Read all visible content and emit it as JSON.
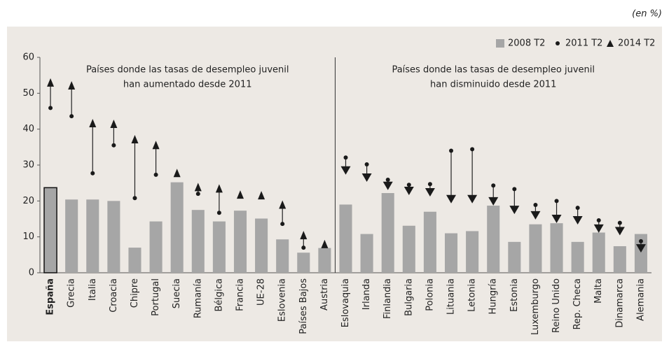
{
  "chart_data": {
    "type": "bar_dot_triangle",
    "unit_note": "(en %)",
    "annotations": [
      [
        "Países donde las tasas de desempleo juvenil",
        "han aumentado desde 2011"
      ],
      [
        "Países donde las tasas de desempleo juvenil",
        "han disminuido desde 2011"
      ]
    ],
    "divider_index": 15,
    "highlight_index": 0,
    "categories": [
      "España",
      "Grecia",
      "Italia",
      "Croacia",
      "Chipre",
      "Portugal",
      "Suecia",
      "Rumanía",
      "Bélgica",
      "Francia",
      "UE-28",
      "Eslovenia",
      "Países Bajos",
      "Austria",
      "Eslovaquia",
      "Irlanda",
      "Finlandia",
      "Bulgaria",
      "Polonia",
      "Lituania",
      "Letonia",
      "Hungría",
      "Estonia",
      "Luxemburgo",
      "Reino Unido",
      "Rep. Checa",
      "Malta",
      "Dinamarca",
      "Alemania"
    ],
    "series": [
      {
        "name": "2008 T2",
        "marker": "bar",
        "color": "#a6a6a6",
        "values": [
          23.7,
          20.4,
          20.4,
          20.0,
          7.0,
          14.3,
          25.2,
          17.5,
          14.3,
          17.3,
          15.1,
          9.3,
          5.6,
          6.9,
          19.0,
          10.8,
          22.2,
          13.1,
          17.0,
          11.0,
          11.6,
          18.7,
          8.6,
          13.5,
          13.8,
          8.6,
          11.2,
          7.4,
          10.8
        ]
      },
      {
        "name": "2011 T2",
        "marker": "dot",
        "color": "#1a1a1a",
        "values": [
          45.9,
          43.6,
          27.7,
          35.5,
          20.8,
          27.3,
          null,
          22.0,
          16.7,
          null,
          null,
          13.6,
          7.0,
          null,
          32.1,
          30.2,
          25.9,
          24.5,
          24.7,
          34.0,
          34.4,
          24.3,
          23.3,
          18.9,
          20.0,
          18.1,
          14.6,
          13.9,
          8.8
        ]
      },
      {
        "name": "2014 T2",
        "marker": "triangle",
        "color": "#1a1a1a",
        "values": [
          53.0,
          52.2,
          41.7,
          41.5,
          37.2,
          35.6,
          27.8,
          23.9,
          23.5,
          21.8,
          21.6,
          19.0,
          10.5,
          8.0,
          28.5,
          26.5,
          24.2,
          22.8,
          22.4,
          20.5,
          20.5,
          19.9,
          17.5,
          16.0,
          15.0,
          14.6,
          12.3,
          11.6,
          6.8
        ]
      }
    ],
    "ylim": [
      0,
      60
    ],
    "yticks": [
      0,
      10,
      20,
      30,
      40,
      50,
      60
    ],
    "grid": false
  }
}
